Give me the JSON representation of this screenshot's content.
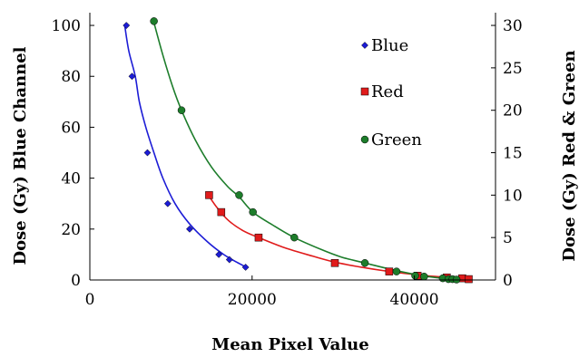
{
  "chart_data": {
    "type": "scatter",
    "xlabel": "Mean Pixel Value",
    "ylabel_left": "Dose (Gy) Blue Channel",
    "ylabel_right": "Dose (Gy) Red & Green",
    "xlim": [
      0,
      50000
    ],
    "ylim_left": [
      0,
      105
    ],
    "ylim_right": [
      0,
      31.5
    ],
    "x_ticks": [
      0,
      20000,
      40000
    ],
    "x_tick_labels": [
      "0",
      "20000",
      "40000"
    ],
    "y_left_ticks": [
      0,
      20,
      40,
      60,
      80,
      100
    ],
    "y_left_tick_labels": [
      "0",
      "20",
      "40",
      "60",
      "80",
      "100"
    ],
    "y_right_ticks": [
      0,
      5,
      10,
      15,
      20,
      25,
      30
    ],
    "y_right_tick_labels": [
      "0",
      "5",
      "10",
      "15",
      "20",
      "25",
      "30"
    ],
    "grid": false,
    "legend_position": "top-right",
    "series": [
      {
        "name": "Blue",
        "axis": "left",
        "marker": "diamond",
        "color": "#1c1cd6",
        "points": [
          [
            4500,
            100
          ],
          [
            5200,
            80
          ],
          [
            7100,
            50
          ],
          [
            9600,
            30
          ],
          [
            12300,
            20
          ],
          [
            15900,
            10
          ],
          [
            17200,
            8
          ],
          [
            19200,
            5
          ]
        ],
        "fit_points": [
          [
            4300,
            100
          ],
          [
            4800,
            90
          ],
          [
            5600,
            80
          ],
          [
            6100,
            70
          ],
          [
            6900,
            60
          ],
          [
            7900,
            50
          ],
          [
            9000,
            40
          ],
          [
            10500,
            30
          ],
          [
            12300,
            22
          ],
          [
            14500,
            15
          ],
          [
            16500,
            10
          ],
          [
            18100,
            7
          ],
          [
            19300,
            5
          ]
        ]
      },
      {
        "name": "Red",
        "axis": "right",
        "marker": "square",
        "color": "#e01b1b",
        "points": [
          [
            14700,
            10
          ],
          [
            16200,
            8
          ],
          [
            20800,
            5
          ],
          [
            30200,
            2
          ],
          [
            36900,
            1
          ],
          [
            40400,
            0.5
          ],
          [
            44000,
            0.3
          ],
          [
            45900,
            0.2
          ],
          [
            46700,
            0.1
          ]
        ],
        "fit_points": [
          [
            14600,
            10
          ],
          [
            15700,
            8.5
          ],
          [
            17100,
            7
          ],
          [
            18900,
            5.8
          ],
          [
            20800,
            5
          ],
          [
            24000,
            3.8
          ],
          [
            27500,
            2.8
          ],
          [
            30200,
            2.1
          ],
          [
            33500,
            1.5
          ],
          [
            36900,
            1.0
          ],
          [
            40400,
            0.6
          ],
          [
            43500,
            0.35
          ],
          [
            46700,
            0.1
          ]
        ]
      },
      {
        "name": "Green",
        "axis": "right",
        "marker": "circle",
        "color": "#1d7d2b",
        "points": [
          [
            7900,
            30.5
          ],
          [
            11300,
            20
          ],
          [
            18400,
            10
          ],
          [
            20100,
            8
          ],
          [
            25200,
            5
          ],
          [
            33900,
            2
          ],
          [
            37800,
            1
          ],
          [
            40100,
            0.5
          ],
          [
            41200,
            0.4
          ],
          [
            43500,
            0.2
          ],
          [
            44200,
            0.1
          ],
          [
            44700,
            0.1
          ],
          [
            45200,
            0.05
          ]
        ],
        "fit_points": [
          [
            7800,
            30.7
          ],
          [
            9000,
            26.5
          ],
          [
            10200,
            22.8
          ],
          [
            11300,
            20
          ],
          [
            13000,
            16.5
          ],
          [
            15000,
            13.3
          ],
          [
            17000,
            11
          ],
          [
            18400,
            9.8
          ],
          [
            20100,
            8
          ],
          [
            22500,
            6.5
          ],
          [
            25200,
            5
          ],
          [
            28500,
            3.6
          ],
          [
            31000,
            2.7
          ],
          [
            33900,
            2
          ],
          [
            37800,
            1.1
          ],
          [
            41000,
            0.5
          ],
          [
            43500,
            0.2
          ],
          [
            45300,
            0.05
          ]
        ]
      }
    ]
  }
}
